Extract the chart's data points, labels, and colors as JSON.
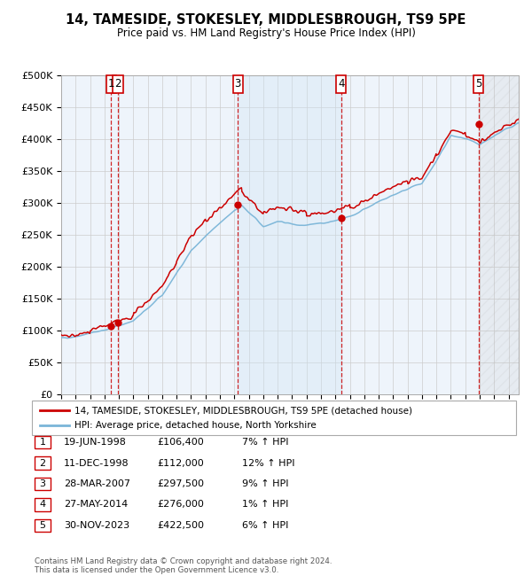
{
  "title": "14, TAMESIDE, STOKESLEY, MIDDLESBROUGH, TS9 5PE",
  "subtitle": "Price paid vs. HM Land Registry's House Price Index (HPI)",
  "ylabel_ticks": [
    "£0",
    "£50K",
    "£100K",
    "£150K",
    "£200K",
    "£250K",
    "£300K",
    "£350K",
    "£400K",
    "£450K",
    "£500K"
  ],
  "ylim": [
    0,
    500000
  ],
  "xlim_start": 1995.3,
  "xlim_end": 2026.7,
  "sale_events": [
    {
      "num": 1,
      "date": "19-JUN-1998",
      "year": 1998.46,
      "price": 106400,
      "pct": "7%",
      "dir": "↑"
    },
    {
      "num": 2,
      "date": "11-DEC-1998",
      "year": 1998.94,
      "price": 112000,
      "pct": "12%",
      "dir": "↑"
    },
    {
      "num": 3,
      "date": "28-MAR-2007",
      "year": 2007.24,
      "price": 297500,
      "pct": "9%",
      "dir": "↑"
    },
    {
      "num": 4,
      "date": "27-MAY-2014",
      "year": 2014.4,
      "price": 276000,
      "pct": "1%",
      "dir": "↑"
    },
    {
      "num": 5,
      "date": "30-NOV-2023",
      "year": 2023.92,
      "price": 422500,
      "pct": "6%",
      "dir": "↑"
    }
  ],
  "legend_line1": "14, TAMESIDE, STOKESLEY, MIDDLESBROUGH, TS9 5PE (detached house)",
  "legend_line2": "HPI: Average price, detached house, North Yorkshire",
  "footer1": "Contains HM Land Registry data © Crown copyright and database right 2024.",
  "footer2": "This data is licensed under the Open Government Licence v3.0.",
  "hpi_color": "#7ab5d8",
  "sale_color": "#cc0000",
  "bg_color": "#ffffff",
  "plot_bg": "#eef4fb",
  "grid_color": "#cccccc",
  "vline_color": "#cc0000",
  "highlight_bg": "#d0e4f5"
}
